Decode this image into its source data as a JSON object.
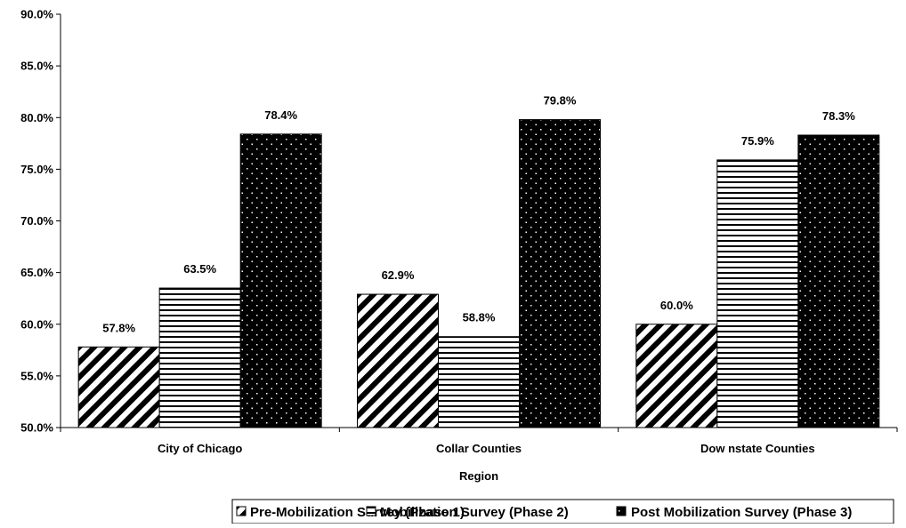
{
  "chart_data": {
    "type": "bar",
    "title": "",
    "xlabel": "Region",
    "ylabel": "",
    "ylim": [
      0.5,
      0.9
    ],
    "y_ticks": [
      "50.0%",
      "55.0%",
      "60.0%",
      "65.0%",
      "70.0%",
      "75.0%",
      "80.0%",
      "85.0%",
      "90.0%"
    ],
    "y_tick_values": [
      0.5,
      0.55,
      0.6,
      0.65,
      0.7,
      0.75,
      0.8,
      0.85,
      0.9
    ],
    "categories": [
      "City of Chicago",
      "Collar Counties",
      "Dow nstate Counties"
    ],
    "series": [
      {
        "name": "Pre-Mobilization Survey (Phase 1)",
        "pattern": "diagonal-stripes",
        "values": [
          0.578,
          0.629,
          0.6
        ],
        "labels": [
          "57.8%",
          "62.9%",
          "60.0%"
        ]
      },
      {
        "name": "Mobilization Survey (Phase 2)",
        "pattern": "horizontal-stripes",
        "values": [
          0.635,
          0.588,
          0.759
        ],
        "labels": [
          "63.5%",
          "58.8%",
          "75.9%"
        ]
      },
      {
        "name": "Post Mobilization Survey (Phase 3)",
        "pattern": "black-dotted",
        "values": [
          0.784,
          0.798,
          0.783
        ],
        "labels": [
          "78.4%",
          "79.8%",
          "78.3%"
        ]
      }
    ],
    "grid": false,
    "legend_position": "bottom",
    "colors": {
      "ink": "#000000",
      "background": "#ffffff"
    }
  }
}
